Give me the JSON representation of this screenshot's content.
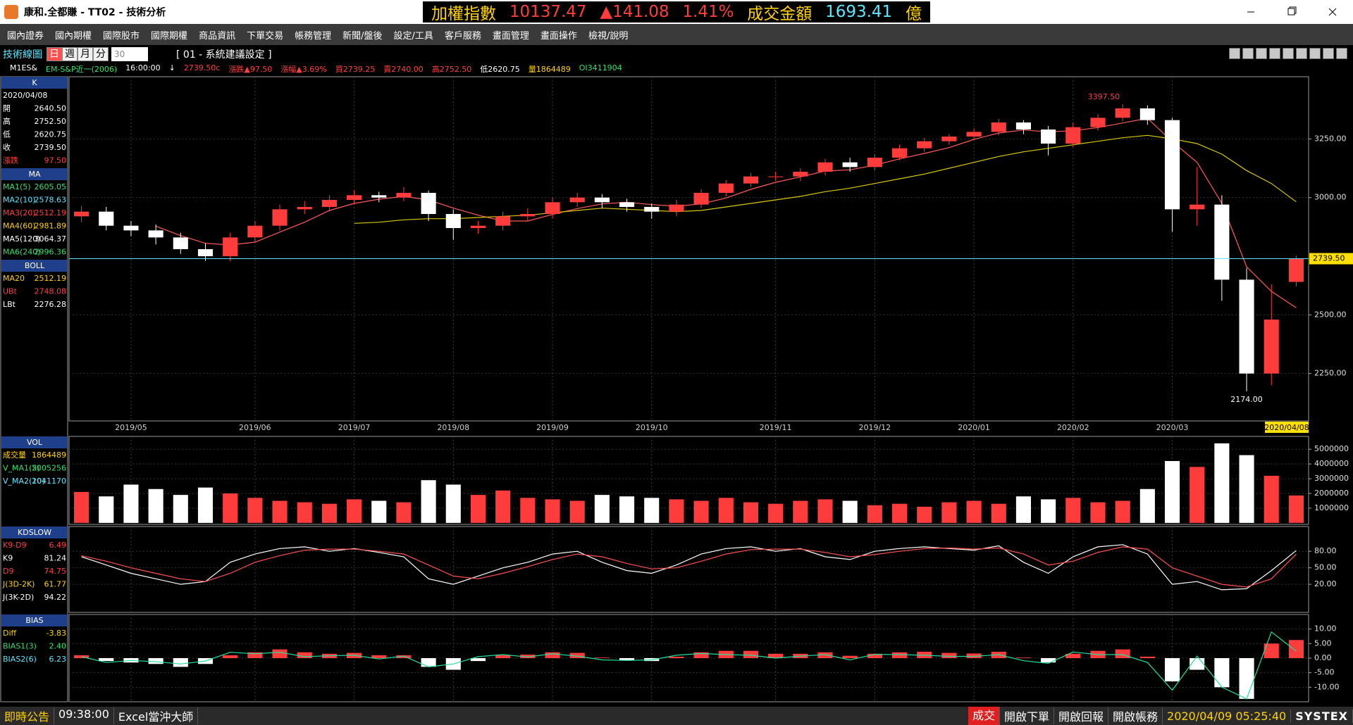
{
  "window": {
    "title": "康和.全都賺 - TT02 - 技術分析",
    "ticker": [
      {
        "text": "加權指數",
        "color": "#ffd200"
      },
      {
        "text": "10137.47",
        "color": "#ff3c3c"
      },
      {
        "text": "▲141.08",
        "color": "#ff3c3c"
      },
      {
        "text": "1.41%",
        "color": "#ff3c3c"
      },
      {
        "text": "成交金額",
        "color": "#ffd200"
      },
      {
        "text": "1693.41",
        "color": "#5fe6ff"
      },
      {
        "text": "億",
        "color": "#ffd200"
      }
    ]
  },
  "menu": [
    "國內證券",
    "國內期權",
    "國際股市",
    "國際期權",
    "商品資訊",
    "下單交易",
    "帳務管理",
    "新聞/盤後",
    "設定/工具",
    "客戶服務",
    "畫面管理",
    "畫面操作",
    "檢視/說明"
  ],
  "toolbar": {
    "label": "技術線圖",
    "tabs": [
      "日",
      "週",
      "月",
      "分"
    ],
    "interval": "30",
    "setting": "[ 01 - 系統建議設定 ]"
  },
  "quote": [
    {
      "text": "M1ES&",
      "color": "#ffffff"
    },
    {
      "text": "EM-S&P近一(2006)",
      "color": "#38e06c"
    },
    {
      "text": "16:00:00",
      "color": "#ffffff"
    },
    {
      "text": "↓",
      "color": "#ffffff"
    },
    {
      "text": "2739.50c",
      "color": "#ff4040"
    },
    {
      "text": "漲跌▲97.50",
      "color": "#ff4040"
    },
    {
      "text": "漲幅▲3.69%",
      "color": "#ff4040"
    },
    {
      "text": "買2739.25",
      "color": "#ff4040"
    },
    {
      "text": "賣2740.00",
      "color": "#ff4040"
    },
    {
      "text": "高2752.50",
      "color": "#ff4040"
    },
    {
      "text": "低2620.75",
      "color": "#ffffff"
    },
    {
      "text": "量1864489",
      "color": "#ffd200"
    },
    {
      "text": "OI3411904",
      "color": "#38e06c"
    }
  ],
  "side_panel": [
    {
      "title": "K",
      "rows": [
        {
          "label": "2020/04/08"
        },
        {
          "label": "開",
          "value": "2640.50"
        },
        {
          "label": "高",
          "value": "2752.50"
        },
        {
          "label": "低",
          "value": "2620.75"
        },
        {
          "label": "收",
          "value": "2739.50"
        },
        {
          "label": "漲跌",
          "value": "97.50",
          "color": "#ff4040"
        }
      ]
    },
    {
      "title": "MA",
      "rows": [
        {
          "label": "MA1(5)",
          "value": "2605.05",
          "color": "#38e06c"
        },
        {
          "label": "MA2(10)",
          "value": "2578.63",
          "color": "#5fe6ff"
        },
        {
          "label": "MA3(20)",
          "value": "2512.19",
          "color": "#ff4040"
        },
        {
          "label": "MA4(60)",
          "value": "2981.89",
          "color": "#ffd200"
        },
        {
          "label": "MA5(120)",
          "value": "3064.37",
          "color": "#ffffff"
        },
        {
          "label": "MA6(240)",
          "value": "2996.36",
          "color": "#38e06c"
        }
      ]
    },
    {
      "title": "BOLL",
      "rows": [
        {
          "label": "MA20",
          "value": "2512.19",
          "color": "#ffd200"
        },
        {
          "label": "UBt",
          "value": "2748.08",
          "color": "#ff4040"
        },
        {
          "label": "LBt",
          "value": "2276.28",
          "color": "#ffffff"
        }
      ]
    },
    {
      "title": "VOL",
      "rows": [
        {
          "label": "成交量",
          "value": "1864489",
          "color": "#ffd200"
        },
        {
          "label": "V_MA1(5)",
          "value": "2005256",
          "color": "#38e06c"
        },
        {
          "label": "V_MA2(10)",
          "value": "2041170",
          "color": "#5fe6ff"
        }
      ]
    },
    {
      "title": "KDSLOW",
      "rows": [
        {
          "label": "K9-D9",
          "value": "6.49",
          "color": "#ff4040"
        },
        {
          "label": "K9",
          "value": "81.24",
          "color": "#ffffff"
        },
        {
          "label": "D9",
          "value": "74.75",
          "color": "#ff4040"
        },
        {
          "label": "J(3D-2K)",
          "value": "61.77",
          "color": "#ffd200"
        },
        {
          "label": "J(3K-2D)",
          "value": "94.22",
          "color": "#ffffff"
        }
      ]
    },
    {
      "title": "BIAS",
      "rows": [
        {
          "label": "Diff",
          "value": "-3.83",
          "color": "#ffd200"
        },
        {
          "label": "BIAS1(3)",
          "value": "2.40",
          "color": "#38e06c"
        },
        {
          "label": "BIAS2(6)",
          "value": "6.23",
          "color": "#5fe6ff"
        }
      ]
    }
  ],
  "chart_data": [
    {
      "type": "candlestick",
      "categories": [
        null,
        null,
        "2019/05",
        null,
        null,
        null,
        null,
        "2019/06",
        null,
        null,
        null,
        "2019/07",
        null,
        null,
        null,
        "2019/08",
        null,
        null,
        null,
        "2019/09",
        null,
        null,
        null,
        "2019/10",
        null,
        null,
        null,
        null,
        "2019/11",
        null,
        null,
        null,
        "2019/12",
        null,
        null,
        null,
        "2020/01",
        null,
        null,
        null,
        "2020/02",
        null,
        null,
        null,
        "2020/03",
        null,
        null,
        null,
        null,
        "2020/04/08"
      ],
      "open": [
        2920,
        2940,
        2880,
        2860,
        2830,
        2780,
        2750,
        2830,
        2880,
        2950,
        2960,
        2990,
        3010,
        3000,
        3020,
        2930,
        2870,
        2880,
        2920,
        2930,
        2980,
        3000,
        2980,
        2960,
        2940,
        2970,
        3020,
        3060,
        3090,
        3090,
        3110,
        3150,
        3130,
        3170,
        3210,
        3240,
        3260,
        3280,
        3320,
        3290,
        3230,
        3300,
        3340,
        3380,
        3330,
        2950,
        2970,
        2650,
        2250,
        2640.5
      ],
      "high": [
        2965,
        2960,
        2900,
        2885,
        2850,
        2805,
        2850,
        2900,
        2970,
        2985,
        3010,
        3030,
        3025,
        3045,
        3030,
        2950,
        2900,
        2940,
        2955,
        3000,
        3020,
        3015,
        2995,
        2975,
        2990,
        3035,
        3075,
        3105,
        3110,
        3125,
        3165,
        3170,
        3185,
        3225,
        3255,
        3270,
        3295,
        3335,
        3330,
        3305,
        3320,
        3355,
        3397.5,
        3393,
        3340,
        3130,
        3010,
        2700,
        2630,
        2752.5
      ],
      "low": [
        2895,
        2860,
        2835,
        2800,
        2760,
        2730,
        2728,
        2810,
        2860,
        2930,
        2940,
        2970,
        2980,
        2985,
        2900,
        2820,
        2845,
        2860,
        2900,
        2910,
        2960,
        2955,
        2940,
        2910,
        2920,
        2955,
        3005,
        3045,
        3070,
        3070,
        3095,
        3110,
        3115,
        3160,
        3195,
        3225,
        3245,
        3265,
        3270,
        3180,
        3215,
        3285,
        3325,
        3310,
        2855,
        2880,
        2560,
        2174,
        2200,
        2620.75
      ],
      "close": [
        2940,
        2880,
        2860,
        2830,
        2780,
        2750,
        2830,
        2880,
        2950,
        2960,
        2990,
        3010,
        3000,
        3020,
        2930,
        2870,
        2880,
        2920,
        2930,
        2980,
        3000,
        2980,
        2960,
        2940,
        2970,
        3020,
        3060,
        3090,
        3090,
        3110,
        3150,
        3130,
        3170,
        3210,
        3240,
        3260,
        3280,
        3320,
        3290,
        3230,
        3300,
        3340,
        3380,
        3330,
        2950,
        2970,
        2650,
        2250,
        2480,
        2739.5
      ],
      "up_color": "#ff3c3c",
      "down_color": "#ffffff",
      "lines": [
        {
          "color": "#ff5a5a",
          "values": [
            null,
            null,
            null,
            2878,
            2838,
            2805,
            2798,
            2810,
            2853,
            2895,
            2945,
            2975,
            2993,
            3005,
            2990,
            2955,
            2925,
            2900,
            2900,
            2928,
            2953,
            2973,
            2980,
            2970,
            2963,
            2973,
            2998,
            3035,
            3065,
            3088,
            3113,
            3118,
            3138,
            3165,
            3188,
            3213,
            3248,
            3275,
            3288,
            3280,
            3285,
            3298,
            3318,
            3338,
            3238,
            3150,
            2975,
            2705,
            2600,
            2530
          ]
        },
        {
          "color": "#d8c800",
          "values": [
            null,
            null,
            null,
            null,
            null,
            null,
            null,
            null,
            null,
            null,
            null,
            2890,
            2895,
            2905,
            2910,
            2910,
            2915,
            2920,
            2925,
            2935,
            2945,
            2955,
            2950,
            2945,
            2940,
            2945,
            2960,
            2975,
            2990,
            3005,
            3025,
            3040,
            3060,
            3080,
            3100,
            3125,
            3150,
            3175,
            3195,
            3210,
            3225,
            3240,
            3255,
            3265,
            3250,
            3230,
            3185,
            3115,
            3060,
            2982
          ]
        }
      ],
      "ylim": [
        2048,
        3515
      ],
      "yticks": [
        {
          "value": 2250,
          "label": "2250.00"
        },
        {
          "value": 2500,
          "label": "2500.00"
        },
        {
          "value": 3000,
          "label": "3000.00"
        },
        {
          "value": 3250,
          "label": "3250.00"
        }
      ],
      "high_label": "3397.50",
      "low_label": "2174.00",
      "last_label": "2739.50",
      "grid": true
    },
    {
      "type": "bar",
      "color_by": "candle",
      "up_color": "#ff3c3c",
      "down_color": "#ffffff",
      "values": [
        2100000,
        1800000,
        2600000,
        2300000,
        1900000,
        2400000,
        2000000,
        1700000,
        1500000,
        1400000,
        1300000,
        1600000,
        1500000,
        1400000,
        2900000,
        2600000,
        1900000,
        2200000,
        1700000,
        1600000,
        1500000,
        1900000,
        1800000,
        1700000,
        1600000,
        1500000,
        1700000,
        1400000,
        1300000,
        1500000,
        1600000,
        1500000,
        1200000,
        1300000,
        1100000,
        1400000,
        1500000,
        1300000,
        1800000,
        1600000,
        1700000,
        1400000,
        1500000,
        2300000,
        4200000,
        3800000,
        5400000,
        4600000,
        3200000,
        1864489
      ],
      "ylim": [
        -100000,
        5870000
      ],
      "yticks": [
        1000000,
        2000000,
        3000000,
        4000000,
        5000000
      ],
      "grid": true
    },
    {
      "type": "line",
      "series": [
        {
          "color": "#ffffff",
          "values": [
            70,
            55,
            40,
            30,
            20,
            25,
            60,
            75,
            85,
            88,
            80,
            85,
            78,
            70,
            30,
            20,
            35,
            50,
            60,
            75,
            80,
            60,
            45,
            40,
            55,
            75,
            85,
            88,
            80,
            85,
            70,
            65,
            80,
            85,
            88,
            85,
            82,
            90,
            60,
            40,
            70,
            88,
            92,
            75,
            20,
            25,
            10,
            12,
            45,
            81.24
          ]
        },
        {
          "color": "#ff5050",
          "values": [
            72,
            62,
            50,
            40,
            30,
            25,
            40,
            60,
            72,
            82,
            84,
            84,
            80,
            75,
            55,
            35,
            30,
            40,
            52,
            65,
            75,
            70,
            58,
            48,
            50,
            62,
            75,
            83,
            84,
            84,
            78,
            70,
            74,
            80,
            85,
            86,
            84,
            86,
            75,
            55,
            62,
            78,
            88,
            84,
            50,
            35,
            20,
            15,
            30,
            74.75
          ]
        }
      ],
      "ylim": [
        -31,
        125
      ],
      "yticks": [
        {
          "value": 20,
          "label": "20.00"
        },
        {
          "value": 50,
          "label": "50.00"
        },
        {
          "value": 80,
          "label": "80.00"
        }
      ],
      "grid": true
    },
    {
      "type": "bar",
      "color_by": "sign",
      "up_color": "#ff3c3c",
      "down_color": "#ffffff",
      "values": [
        1,
        -1,
        -1.5,
        -2,
        -3,
        -2,
        1,
        2,
        3,
        2,
        1.5,
        1.8,
        1,
        1,
        -3,
        -4,
        -1,
        1,
        1.2,
        2,
        1.8,
        0.2,
        -0.8,
        -1,
        0.5,
        2,
        2.5,
        2.5,
        1.5,
        1.5,
        2,
        0.8,
        1.5,
        2,
        2.2,
        1.8,
        1.6,
        2.2,
        0.2,
        -1.5,
        1.5,
        2.5,
        3,
        0.5,
        -8,
        -4,
        -10,
        -14,
        5,
        6.23
      ],
      "series": [
        {
          "color": "#20e0a0",
          "values": [
            0.5,
            -1.5,
            -0.8,
            -1.2,
            -2,
            -1,
            2,
            1.5,
            2,
            0.5,
            0.8,
            1,
            -0.3,
            0.7,
            -3,
            -2,
            0.5,
            1.2,
            0.4,
            1.5,
            0.7,
            -0.6,
            -0.8,
            -0.6,
            1,
            1.6,
            1.2,
            1,
            0,
            0.7,
            1.2,
            -0.6,
            1.3,
            1.2,
            1,
            0.6,
            0.6,
            1.2,
            -0.9,
            -1.8,
            2.1,
            1.2,
            1.2,
            -1.5,
            -11,
            0.7,
            -10,
            -14,
            9,
            2.4
          ]
        }
      ],
      "ylim": [
        -15,
        15
      ],
      "yticks": [
        {
          "value": -10,
          "label": "-10.00"
        },
        {
          "value": -5,
          "label": "-5.00"
        },
        {
          "value": 0,
          "label": "0.00"
        },
        {
          "value": 5,
          "label": "5.00"
        },
        {
          "value": 10,
          "label": "10.00"
        }
      ],
      "grid": true
    }
  ],
  "status": {
    "left": [
      "即時公告",
      "09:38:00",
      "Excel當沖大師"
    ],
    "right": [
      "成交",
      "開啟下單",
      "開啟回報",
      "開啟帳務",
      "2020/04/09 05:25:40",
      "SYSTEX"
    ]
  }
}
